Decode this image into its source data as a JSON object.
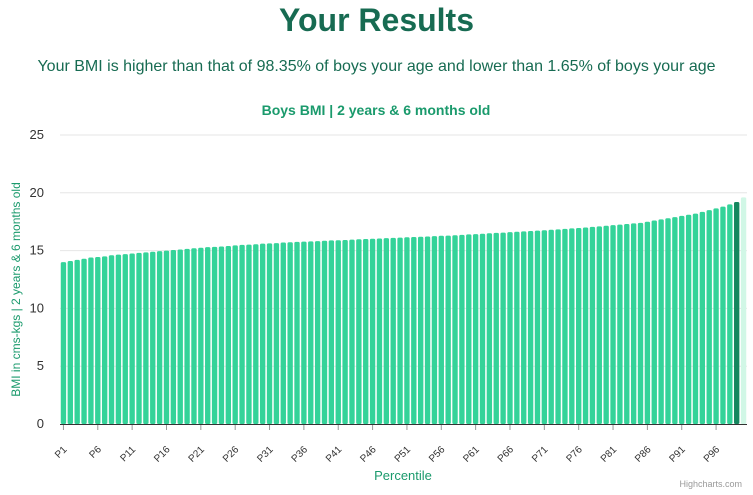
{
  "page": {
    "title": "Your Results",
    "summary": "Your BMI is higher than that of 98.35% of boys your age and lower than 1.65% of boys your age",
    "credit": "Highcharts.com"
  },
  "colors": {
    "heading": "#176b52",
    "chart_title": "#1a9a6c",
    "bar": "#34d399",
    "bar_highlight": "#15875f",
    "bar_faded": "#d1f7e6",
    "grid": "#e6e6e6",
    "axis": "#333333"
  },
  "chart_data": {
    "type": "bar",
    "title": "Boys BMI | 2 years & 6 months old",
    "xlabel": "Percentile",
    "ylabel": "BMI in cms-kgs | 2 years & 6 months old",
    "ylim": [
      0,
      25
    ],
    "yticks": [
      0,
      5,
      10,
      15,
      20,
      25
    ],
    "grid": true,
    "categories": [
      "P1",
      "P2",
      "P3",
      "P4",
      "P5",
      "P6",
      "P7",
      "P8",
      "P9",
      "P10",
      "P11",
      "P12",
      "P13",
      "P14",
      "P15",
      "P16",
      "P17",
      "P18",
      "P19",
      "P20",
      "P21",
      "P22",
      "P23",
      "P24",
      "P25",
      "P26",
      "P27",
      "P28",
      "P29",
      "P30",
      "P31",
      "P32",
      "P33",
      "P34",
      "P35",
      "P36",
      "P37",
      "P38",
      "P39",
      "P40",
      "P41",
      "P42",
      "P43",
      "P44",
      "P45",
      "P46",
      "P47",
      "P48",
      "P49",
      "P50",
      "P51",
      "P52",
      "P53",
      "P54",
      "P55",
      "P56",
      "P57",
      "P58",
      "P59",
      "P60",
      "P61",
      "P62",
      "P63",
      "P64",
      "P65",
      "P66",
      "P67",
      "P68",
      "P69",
      "P70",
      "P71",
      "P72",
      "P73",
      "P74",
      "P75",
      "P76",
      "P77",
      "P78",
      "P79",
      "P80",
      "P81",
      "P82",
      "P83",
      "P84",
      "P85",
      "P86",
      "P87",
      "P88",
      "P89",
      "P90",
      "P91",
      "P92",
      "P93",
      "P94",
      "P95",
      "P96",
      "P97",
      "P98",
      "P99",
      "P100"
    ],
    "tick_labels": [
      "P1",
      "P6",
      "P11",
      "P16",
      "P21",
      "P26",
      "P31",
      "P36",
      "P41",
      "P46",
      "P51",
      "P56",
      "P61",
      "P66",
      "P71",
      "P76",
      "P81",
      "P86",
      "P91",
      "P96"
    ],
    "values": [
      14.0,
      14.1,
      14.2,
      14.3,
      14.4,
      14.45,
      14.5,
      14.6,
      14.65,
      14.7,
      14.75,
      14.8,
      14.85,
      14.9,
      14.95,
      15.0,
      15.05,
      15.1,
      15.15,
      15.2,
      15.25,
      15.3,
      15.32,
      15.35,
      15.4,
      15.45,
      15.5,
      15.52,
      15.55,
      15.6,
      15.62,
      15.65,
      15.7,
      15.72,
      15.75,
      15.78,
      15.8,
      15.82,
      15.85,
      15.88,
      15.9,
      15.92,
      15.95,
      15.98,
      16.0,
      16.02,
      16.05,
      16.08,
      16.1,
      16.12,
      16.15,
      16.18,
      16.2,
      16.22,
      16.25,
      16.28,
      16.3,
      16.33,
      16.36,
      16.4,
      16.43,
      16.46,
      16.5,
      16.53,
      16.56,
      16.6,
      16.63,
      16.66,
      16.7,
      16.73,
      16.76,
      16.8,
      16.84,
      16.88,
      16.92,
      16.96,
      17.0,
      17.05,
      17.1,
      17.15,
      17.2,
      17.25,
      17.3,
      17.35,
      17.4,
      17.5,
      17.6,
      17.7,
      17.8,
      17.9,
      18.0,
      18.1,
      18.2,
      18.35,
      18.5,
      18.65,
      18.8,
      19.0,
      19.2,
      19.6
    ],
    "highlight_index": 98,
    "faded_index": 99
  }
}
